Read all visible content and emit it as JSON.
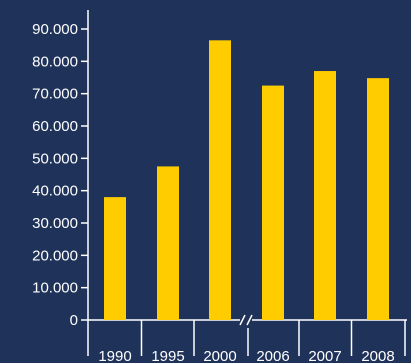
{
  "colors": {
    "background": "#1f3259",
    "bar": "#ffcc00",
    "axis": "#ffffff",
    "text": "#ffffff"
  },
  "chart_data": {
    "type": "bar",
    "categories": [
      "1990",
      "1995",
      "2000",
      "2006",
      "2007",
      "2008"
    ],
    "values": [
      38000,
      47500,
      86500,
      72500,
      77000,
      74800
    ],
    "y_ticks": [
      "0",
      "10.000",
      "20.000",
      "30.000",
      "40.000",
      "50.000",
      "60.000",
      "70.000",
      "80.000",
      "90.000"
    ],
    "ylim": [
      0,
      92000
    ],
    "axis_break_after_category": "2000",
    "grid": false,
    "legend": "none"
  }
}
